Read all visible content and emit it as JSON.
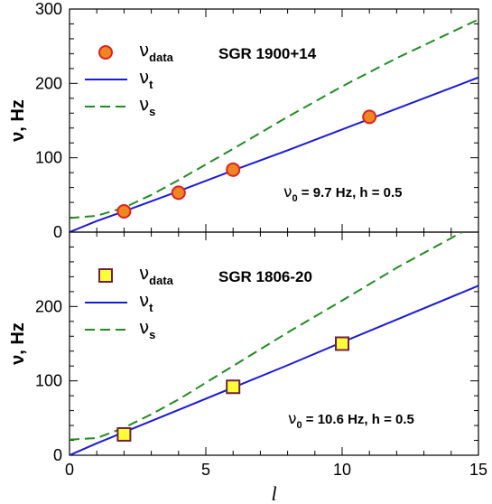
{
  "chart_data": [
    {
      "type": "line",
      "title": "SGR 1900+14",
      "annotation": {
        "prefix": "ν",
        "sub": "0",
        "text": " = 9.7 Hz, h = 0.5"
      },
      "xlabel": "",
      "ylabel": "ν, Hz",
      "xlim": [
        0,
        15
      ],
      "ylim": [
        0,
        300
      ],
      "yticks": [
        0,
        100,
        200,
        300
      ],
      "legend_placement": "top-left",
      "colors": {
        "data_fill": "#f0861e",
        "data_edge": "#e02020",
        "nu_t": "#1a1adc",
        "nu_s": "#1f8c1f"
      },
      "series": [
        {
          "name": "data",
          "legend": {
            "sym": "ν",
            "sub": "data"
          },
          "marker": "circle",
          "x": [
            2,
            4,
            6,
            11
          ],
          "y": [
            28,
            53,
            84,
            155
          ]
        },
        {
          "name": "t",
          "legend": {
            "sym": "ν",
            "sub": "t"
          },
          "style": "solid",
          "x": [
            0,
            1,
            2,
            4,
            6,
            8,
            11,
            15
          ],
          "y": [
            0,
            15,
            28,
            55,
            83,
            110,
            152,
            208
          ]
        },
        {
          "name": "s",
          "legend": {
            "sym": "ν",
            "sub": "s"
          },
          "style": "dashed",
          "x": [
            0,
            1,
            2,
            3,
            4,
            6,
            8,
            10,
            12,
            15
          ],
          "y": [
            19,
            22,
            33,
            50,
            70,
            112,
            155,
            196,
            234,
            286
          ]
        }
      ]
    },
    {
      "type": "line",
      "title": "SGR 1806-20",
      "annotation": {
        "prefix": "ν",
        "sub": "0",
        "text": " = 10.6 Hz, h = 0.5"
      },
      "xlabel": "l",
      "ylabel": "ν, Hz",
      "xlim": [
        0,
        15
      ],
      "xticks": [
        0,
        5,
        10,
        15
      ],
      "ylim": [
        0,
        300
      ],
      "yticks": [
        0,
        100,
        200
      ],
      "legend_placement": "top-left",
      "colors": {
        "data_fill": "#ffff33",
        "data_edge": "#702040",
        "nu_t": "#1a1adc",
        "nu_s": "#1f8c1f"
      },
      "series": [
        {
          "name": "data",
          "legend": {
            "sym": "ν",
            "sub": "data"
          },
          "marker": "square",
          "x": [
            2,
            6,
            10
          ],
          "y": [
            28,
            92,
            150
          ]
        },
        {
          "name": "t",
          "legend": {
            "sym": "ν",
            "sub": "t"
          },
          "style": "solid",
          "x": [
            0,
            1,
            2,
            4,
            6,
            8,
            10,
            15
          ],
          "y": [
            0,
            16,
            31,
            61,
            91,
            121,
            152,
            228
          ]
        },
        {
          "name": "s",
          "legend": {
            "sym": "ν",
            "sub": "s"
          },
          "style": "dashed",
          "x": [
            0,
            1,
            2,
            3,
            4,
            6,
            8,
            10,
            12,
            14.4
          ],
          "y": [
            21,
            23,
            37,
            55,
            75,
            120,
            165,
            208,
            252,
            300
          ]
        }
      ]
    }
  ]
}
